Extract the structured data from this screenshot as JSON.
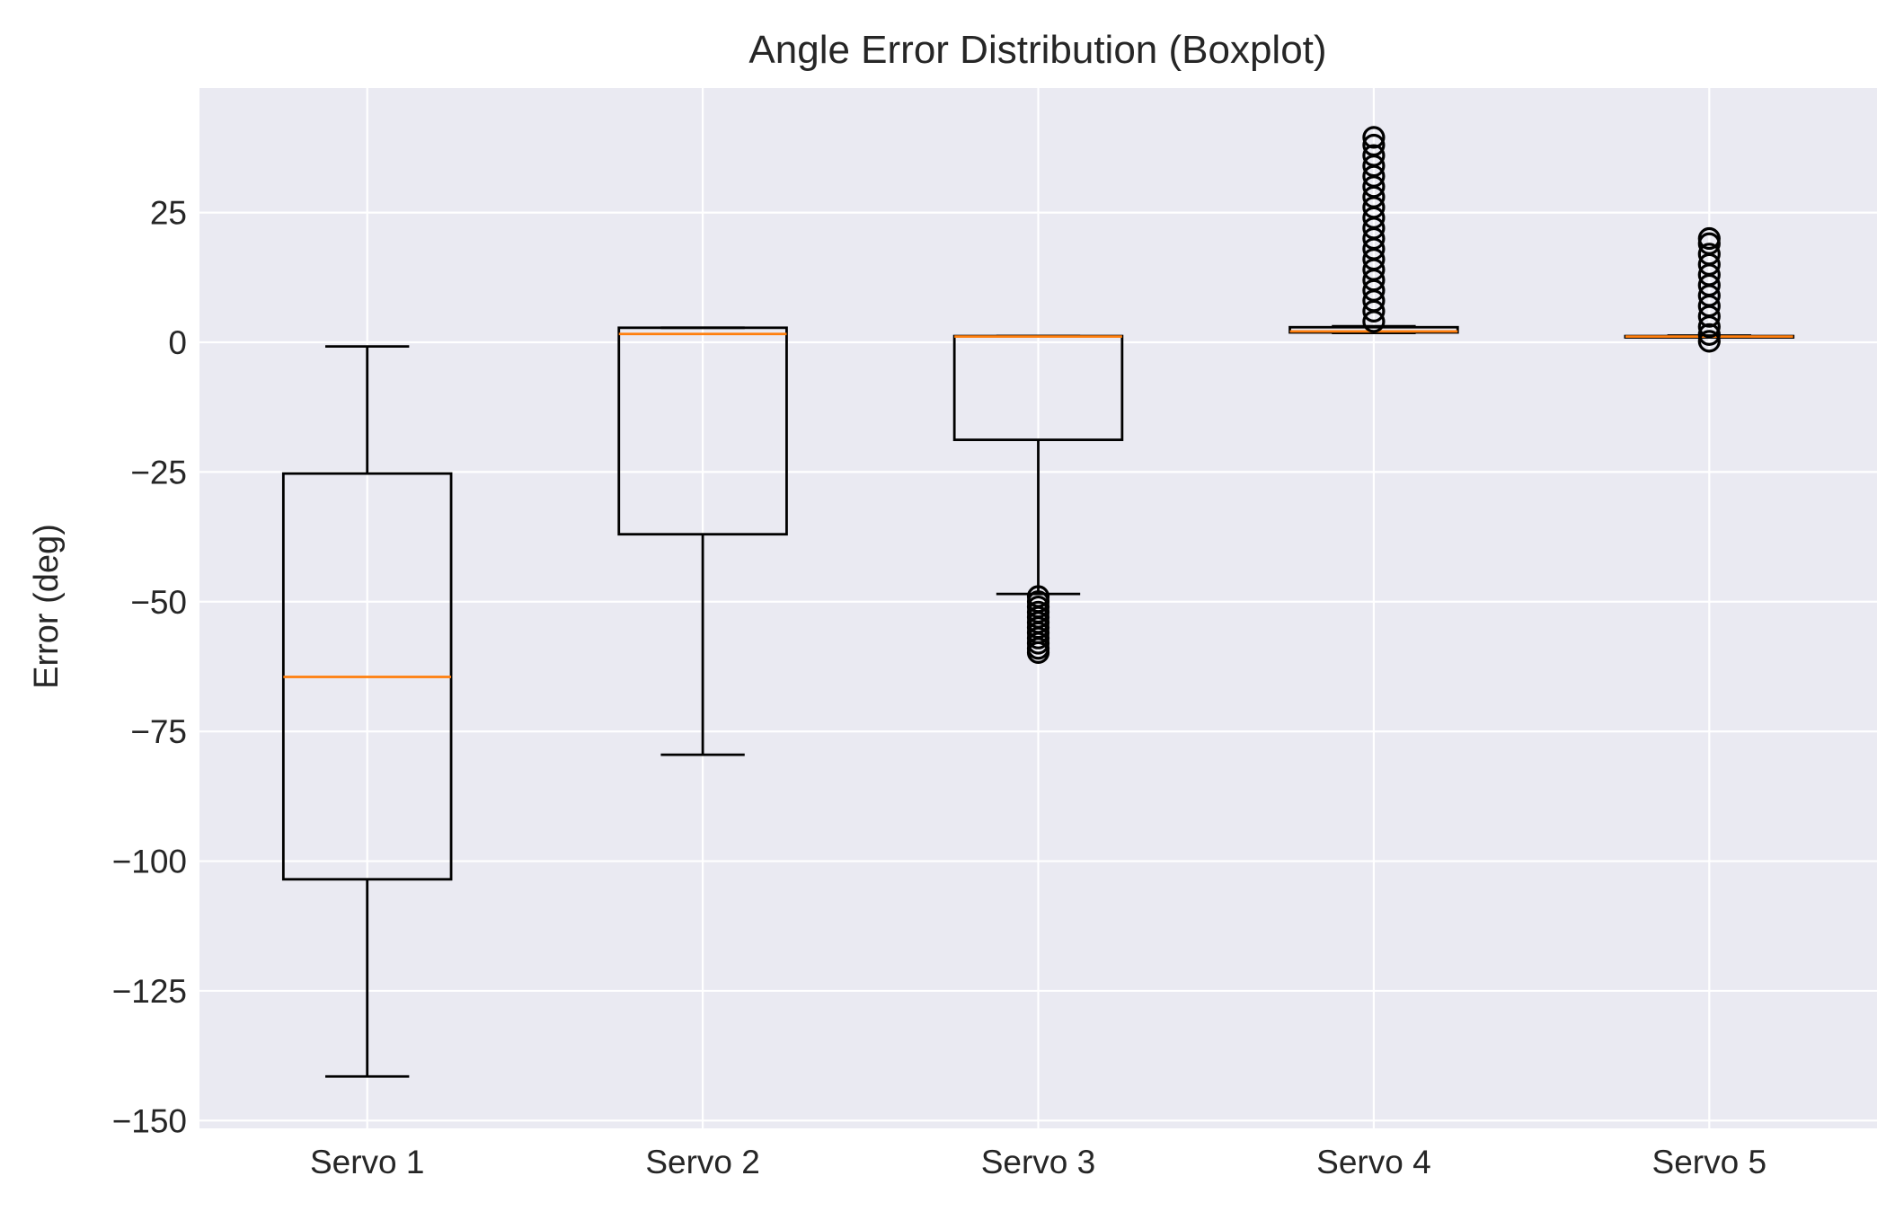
{
  "chart_data": {
    "type": "boxplot",
    "title": "Angle Error Distribution (Boxplot)",
    "xlabel": "",
    "ylabel": "Error (deg)",
    "ylim": [
      -151.5,
      49
    ],
    "yticks": [
      25,
      0,
      -25,
      -50,
      -75,
      -100,
      -125,
      -150
    ],
    "ytick_labels": [
      "25",
      "0",
      "−25",
      "−50",
      "−75",
      "−100",
      "−125",
      "−150"
    ],
    "grid": true,
    "colors": {
      "plot_background": "#eaeaf2",
      "grid": "#ffffff",
      "box_edge": "#000000",
      "median": "#ff7f0e",
      "outlier": "#000000"
    },
    "categories": [
      "Servo 1",
      "Servo 2",
      "Servo 3",
      "Servo 4",
      "Servo 5"
    ],
    "series": [
      {
        "category": "Servo 1",
        "whisker_low": -141.5,
        "q1": -103.5,
        "median": -64.5,
        "q3": -25.3,
        "whisker_high": -0.8,
        "outliers": []
      },
      {
        "category": "Servo 2",
        "whisker_low": -79.5,
        "q1": -37,
        "median": 1.6,
        "q3": 2.8,
        "whisker_high": 2.8,
        "outliers": []
      },
      {
        "category": "Servo 3",
        "whisker_low": -48.5,
        "q1": -18.8,
        "median": 1.1,
        "q3": 1.2,
        "whisker_high": 1.2,
        "outliers": [
          -49,
          -50,
          -51,
          -52,
          -53,
          -54,
          -55,
          -56,
          -57,
          -58,
          -59,
          -59.8
        ]
      },
      {
        "category": "Servo 4",
        "whisker_low": 1.8,
        "q1": 1.9,
        "median": 2.1,
        "q3": 2.9,
        "whisker_high": 3.1,
        "outliers": [
          4,
          6,
          8,
          10,
          12,
          14,
          16,
          18,
          20,
          22,
          24,
          26,
          28,
          30,
          32,
          34,
          36,
          38,
          39.5
        ]
      },
      {
        "category": "Servo 5",
        "whisker_low": 1.0,
        "q1": 1.05,
        "median": 1.1,
        "q3": 1.2,
        "whisker_high": 1.3,
        "outliers": [
          0.2,
          1.5,
          3,
          5,
          7,
          9,
          11,
          13,
          15,
          17,
          19,
          20
        ]
      }
    ]
  }
}
